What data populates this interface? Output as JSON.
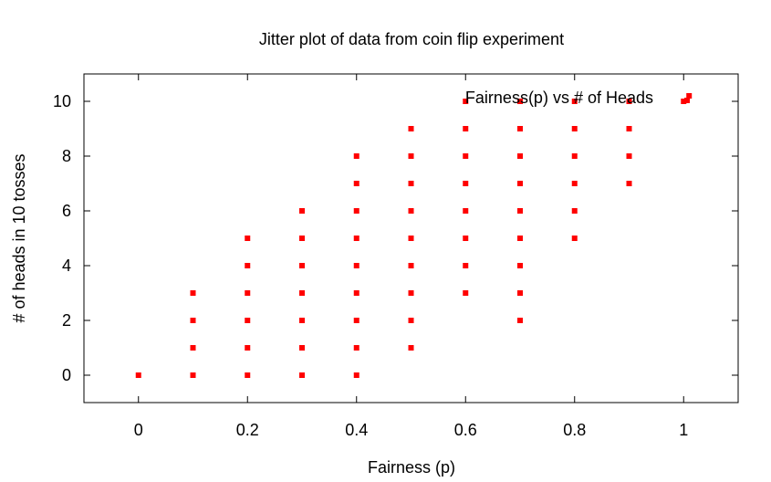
{
  "chart_data": {
    "type": "scatter",
    "title": "Jitter plot of data from coin flip experiment",
    "xlabel": "Fairness (p)",
    "ylabel": "# of heads in 10 tosses",
    "xlim": [
      -0.1,
      1.1
    ],
    "ylim": [
      -1,
      11
    ],
    "xticks": [
      0,
      0.2,
      0.4,
      0.6,
      0.8,
      1
    ],
    "xtick_labels": [
      "0",
      "0.2",
      "0.4",
      "0.6",
      "0.8",
      "1"
    ],
    "yticks": [
      0,
      2,
      4,
      6,
      8,
      10
    ],
    "ytick_labels": [
      "0",
      "2",
      "4",
      "6",
      "8",
      "10"
    ],
    "grid": false,
    "legend_position": "top-right",
    "marker_color": "#ff0000",
    "series": [
      {
        "name": "Fairness(p) vs # of Heads",
        "points": [
          [
            0.0,
            0
          ],
          [
            0.1,
            0
          ],
          [
            0.1,
            1
          ],
          [
            0.1,
            2
          ],
          [
            0.1,
            3
          ],
          [
            0.2,
            0
          ],
          [
            0.2,
            1
          ],
          [
            0.2,
            2
          ],
          [
            0.2,
            3
          ],
          [
            0.2,
            4
          ],
          [
            0.2,
            5
          ],
          [
            0.3,
            0
          ],
          [
            0.3,
            1
          ],
          [
            0.3,
            2
          ],
          [
            0.3,
            3
          ],
          [
            0.3,
            4
          ],
          [
            0.3,
            5
          ],
          [
            0.3,
            6
          ],
          [
            0.4,
            0
          ],
          [
            0.4,
            1
          ],
          [
            0.4,
            2
          ],
          [
            0.4,
            3
          ],
          [
            0.4,
            4
          ],
          [
            0.4,
            5
          ],
          [
            0.4,
            6
          ],
          [
            0.4,
            7
          ],
          [
            0.4,
            8
          ],
          [
            0.5,
            1
          ],
          [
            0.5,
            2
          ],
          [
            0.5,
            3
          ],
          [
            0.5,
            4
          ],
          [
            0.5,
            5
          ],
          [
            0.5,
            6
          ],
          [
            0.5,
            7
          ],
          [
            0.5,
            8
          ],
          [
            0.5,
            9
          ],
          [
            0.6,
            3
          ],
          [
            0.6,
            4
          ],
          [
            0.6,
            5
          ],
          [
            0.6,
            6
          ],
          [
            0.6,
            7
          ],
          [
            0.6,
            8
          ],
          [
            0.6,
            9
          ],
          [
            0.6,
            10
          ],
          [
            0.7,
            2
          ],
          [
            0.7,
            3
          ],
          [
            0.7,
            4
          ],
          [
            0.7,
            5
          ],
          [
            0.7,
            6
          ],
          [
            0.7,
            7
          ],
          [
            0.7,
            8
          ],
          [
            0.7,
            9
          ],
          [
            0.7,
            10
          ],
          [
            0.8,
            5
          ],
          [
            0.8,
            6
          ],
          [
            0.8,
            7
          ],
          [
            0.8,
            8
          ],
          [
            0.8,
            9
          ],
          [
            0.8,
            10
          ],
          [
            0.9,
            7
          ],
          [
            0.9,
            8
          ],
          [
            0.9,
            9
          ],
          [
            0.9,
            10
          ],
          [
            1.0,
            10
          ],
          [
            1.01,
            10.2
          ]
        ]
      }
    ]
  }
}
